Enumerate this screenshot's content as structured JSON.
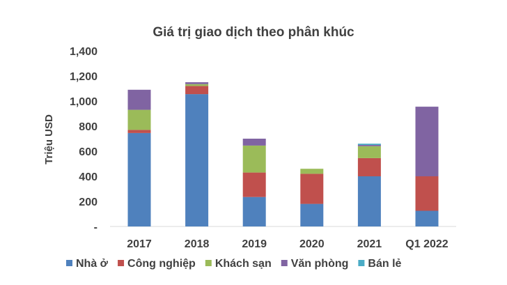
{
  "chart_data": {
    "type": "bar",
    "stacked": true,
    "title": "Giá trị giao dịch theo phân khúc",
    "ylabel": "Triệu USD",
    "xlabel": "",
    "ylim": [
      0,
      1400
    ],
    "yticks": [
      "-",
      "200",
      "400",
      "600",
      "800",
      "1,000",
      "1,200",
      "1,400"
    ],
    "grid": false,
    "legend": "bottom",
    "categories": [
      "2017",
      "2018",
      "2019",
      "2020",
      "2021",
      "Q1 2022"
    ],
    "series": [
      {
        "name": "Nhà ở",
        "color": "#4f81bd",
        "values": [
          745,
          1055,
          235,
          180,
          400,
          125
        ]
      },
      {
        "name": "Công nghiệp",
        "color": "#c0504d",
        "values": [
          25,
          65,
          195,
          240,
          145,
          275
        ]
      },
      {
        "name": "Khách sạn",
        "color": "#9bbb59",
        "values": [
          160,
          15,
          215,
          40,
          95,
          0
        ]
      },
      {
        "name": "Văn phòng",
        "color": "#8064a2",
        "values": [
          160,
          15,
          55,
          0,
          10,
          555
        ]
      },
      {
        "name": "Bán lẻ",
        "color": "#4bacc6",
        "values": [
          0,
          0,
          0,
          0,
          10,
          0
        ]
      }
    ]
  }
}
